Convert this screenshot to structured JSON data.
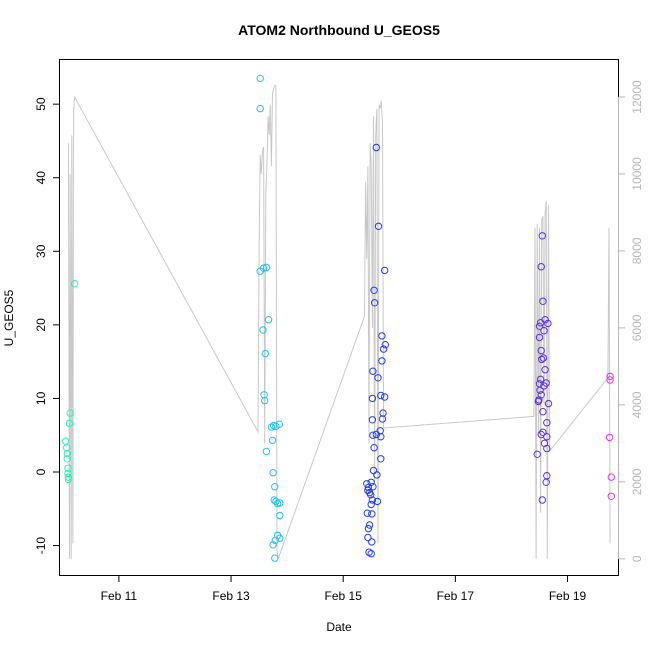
{
  "chart_data": {
    "type": "scatter",
    "title": "ATOM2 Northbound U_GEOS5",
    "xlabel": "Date",
    "ylabel": "U_GEOS5",
    "xlim": [
      9.95,
      19.9
    ],
    "ylim": [
      -14,
      56
    ],
    "y2lim": [
      -420,
      12960
    ],
    "x_ticks": [
      {
        "value": 11,
        "label": "Feb 11"
      },
      {
        "value": 13,
        "label": "Feb 13"
      },
      {
        "value": 15,
        "label": "Feb 15"
      },
      {
        "value": 17,
        "label": "Feb 17"
      },
      {
        "value": 19,
        "label": "Feb 19"
      }
    ],
    "y_ticks": [
      -10,
      0,
      10,
      20,
      30,
      40,
      50
    ],
    "y2_ticks": [
      0,
      2000,
      4000,
      6000,
      8000,
      10000,
      12000
    ],
    "altitude_color": "#c8c8c8",
    "altitude_series": [
      {
        "x": 10.1,
        "y": 10800
      },
      {
        "x": 10.12,
        "y": 0
      },
      {
        "x": 10.13,
        "y": 10000
      },
      {
        "x": 10.15,
        "y": 0
      },
      {
        "x": 10.16,
        "y": 11000
      },
      {
        "x": 10.18,
        "y": 400
      },
      {
        "x": 10.19,
        "y": 11600
      },
      {
        "x": 10.21,
        "y": 12000
      },
      {
        "x": 13.48,
        "y": 3300
      },
      {
        "x": 13.5,
        "y": 8000
      },
      {
        "x": 13.52,
        "y": 10500
      },
      {
        "x": 13.54,
        "y": 10000
      },
      {
        "x": 13.56,
        "y": 10600
      },
      {
        "x": 13.58,
        "y": 10700
      },
      {
        "x": 13.6,
        "y": 3000
      },
      {
        "x": 13.62,
        "y": 9500
      },
      {
        "x": 13.64,
        "y": 10200
      },
      {
        "x": 13.66,
        "y": 11500
      },
      {
        "x": 13.68,
        "y": 11000
      },
      {
        "x": 13.7,
        "y": 11800
      },
      {
        "x": 13.72,
        "y": 10200
      },
      {
        "x": 13.74,
        "y": 12100
      },
      {
        "x": 13.76,
        "y": 12200
      },
      {
        "x": 13.78,
        "y": 12300
      },
      {
        "x": 13.8,
        "y": 12300
      },
      {
        "x": 13.82,
        "y": 200
      },
      {
        "x": 13.84,
        "y": 0
      },
      {
        "x": 15.38,
        "y": 6300
      },
      {
        "x": 15.4,
        "y": 9800
      },
      {
        "x": 15.42,
        "y": 7800
      },
      {
        "x": 15.44,
        "y": 10200
      },
      {
        "x": 15.46,
        "y": 3000
      },
      {
        "x": 15.48,
        "y": 10800
      },
      {
        "x": 15.5,
        "y": 10300
      },
      {
        "x": 15.52,
        "y": 6000
      },
      {
        "x": 15.54,
        "y": 11500
      },
      {
        "x": 15.56,
        "y": 2000
      },
      {
        "x": 15.58,
        "y": 11000
      },
      {
        "x": 15.6,
        "y": 11700
      },
      {
        "x": 15.62,
        "y": 400
      },
      {
        "x": 15.64,
        "y": 11800
      },
      {
        "x": 15.66,
        "y": 11700
      },
      {
        "x": 15.68,
        "y": 11900
      },
      {
        "x": 15.7,
        "y": 11300
      },
      {
        "x": 15.72,
        "y": 3400
      },
      {
        "x": 18.4,
        "y": 3700
      },
      {
        "x": 18.42,
        "y": 8600
      },
      {
        "x": 18.44,
        "y": 0
      },
      {
        "x": 18.46,
        "y": 8700
      },
      {
        "x": 18.48,
        "y": 3200
      },
      {
        "x": 18.5,
        "y": 8600
      },
      {
        "x": 18.52,
        "y": 1200
      },
      {
        "x": 18.54,
        "y": 8800
      },
      {
        "x": 18.56,
        "y": 8900
      },
      {
        "x": 18.58,
        "y": 4000
      },
      {
        "x": 18.6,
        "y": 9000
      },
      {
        "x": 18.62,
        "y": 9300
      },
      {
        "x": 18.64,
        "y": 0
      },
      {
        "x": 18.66,
        "y": 9200
      },
      {
        "x": 18.68,
        "y": 2800
      },
      {
        "x": 19.72,
        "y": 4700
      },
      {
        "x": 19.74,
        "y": 8600
      },
      {
        "x": 19.76,
        "y": 400
      }
    ],
    "points": [
      {
        "x": 10.05,
        "y": 4.2,
        "color": "#2bf2b8"
      },
      {
        "x": 10.07,
        "y": 3.3,
        "color": "#2bf2b8"
      },
      {
        "x": 10.08,
        "y": 2.5,
        "color": "#2bf2b8"
      },
      {
        "x": 10.08,
        "y": 1.8,
        "color": "#2bf2b8"
      },
      {
        "x": 10.09,
        "y": 0.5,
        "color": "#2bf2b8"
      },
      {
        "x": 10.09,
        "y": -0.2,
        "color": "#2bf2b8"
      },
      {
        "x": 10.1,
        "y": -0.7,
        "color": "#2bf2b8"
      },
      {
        "x": 10.1,
        "y": -1.0,
        "color": "#2bf2b8"
      },
      {
        "x": 10.12,
        "y": 6.6,
        "color": "#2bf2b8"
      },
      {
        "x": 10.13,
        "y": 8.0,
        "color": "#2bf2b8"
      },
      {
        "x": 10.21,
        "y": 25.6,
        "color": "#2bf2b8"
      },
      {
        "x": 13.52,
        "y": 53.5,
        "color": "#21c4e8"
      },
      {
        "x": 13.52,
        "y": 49.4,
        "color": "#21c4e8"
      },
      {
        "x": 13.52,
        "y": 27.3,
        "color": "#21c4e8"
      },
      {
        "x": 13.58,
        "y": 27.7,
        "color": "#21c4e8"
      },
      {
        "x": 13.63,
        "y": 27.8,
        "color": "#21c4e8"
      },
      {
        "x": 13.67,
        "y": 20.7,
        "color": "#21c4e8"
      },
      {
        "x": 13.57,
        "y": 19.3,
        "color": "#21c4e8"
      },
      {
        "x": 13.61,
        "y": 16.1,
        "color": "#21c4e8"
      },
      {
        "x": 13.59,
        "y": 10.5,
        "color": "#21c4e8"
      },
      {
        "x": 13.6,
        "y": 9.7,
        "color": "#21c4e8"
      },
      {
        "x": 13.72,
        "y": 6.1,
        "color": "#21c4e8"
      },
      {
        "x": 13.76,
        "y": 6.3,
        "color": "#21c4e8"
      },
      {
        "x": 13.8,
        "y": 6.2,
        "color": "#21c4e8"
      },
      {
        "x": 13.86,
        "y": 6.5,
        "color": "#21c4e8"
      },
      {
        "x": 13.74,
        "y": 4.3,
        "color": "#21c4e8"
      },
      {
        "x": 13.63,
        "y": 2.8,
        "color": "#21c4e8"
      },
      {
        "x": 13.75,
        "y": -0.1,
        "color": "#21c4e8"
      },
      {
        "x": 13.78,
        "y": -2.0,
        "color": "#21c4e8"
      },
      {
        "x": 13.77,
        "y": -3.8,
        "color": "#21c4e8"
      },
      {
        "x": 13.8,
        "y": -4.0,
        "color": "#21c4e8"
      },
      {
        "x": 13.83,
        "y": -4.3,
        "color": "#21c4e8"
      },
      {
        "x": 13.87,
        "y": -4.2,
        "color": "#21c4e8"
      },
      {
        "x": 13.87,
        "y": -5.9,
        "color": "#21c4e8"
      },
      {
        "x": 13.83,
        "y": -8.6,
        "color": "#21c4e8"
      },
      {
        "x": 13.87,
        "y": -9.0,
        "color": "#21c4e8"
      },
      {
        "x": 13.79,
        "y": -9.3,
        "color": "#21c4e8"
      },
      {
        "x": 13.75,
        "y": -9.9,
        "color": "#21c4e8"
      },
      {
        "x": 13.78,
        "y": -11.7,
        "color": "#21c4e8"
      },
      {
        "x": 15.59,
        "y": 44.1,
        "color": "#1e3cf5"
      },
      {
        "x": 15.63,
        "y": 33.4,
        "color": "#1e3cf5"
      },
      {
        "x": 15.74,
        "y": 27.4,
        "color": "#1e3cf5"
      },
      {
        "x": 15.55,
        "y": 24.7,
        "color": "#1e3cf5"
      },
      {
        "x": 15.56,
        "y": 23.0,
        "color": "#1e3cf5"
      },
      {
        "x": 15.69,
        "y": 18.5,
        "color": "#1e3cf5"
      },
      {
        "x": 15.75,
        "y": 17.3,
        "color": "#1e3cf5"
      },
      {
        "x": 15.72,
        "y": 16.7,
        "color": "#1e3cf5"
      },
      {
        "x": 15.69,
        "y": 15.1,
        "color": "#1e3cf5"
      },
      {
        "x": 15.53,
        "y": 13.7,
        "color": "#1e3cf5"
      },
      {
        "x": 15.62,
        "y": 12.8,
        "color": "#1e3cf5"
      },
      {
        "x": 15.67,
        "y": 10.4,
        "color": "#1e3cf5"
      },
      {
        "x": 15.74,
        "y": 10.2,
        "color": "#1e3cf5"
      },
      {
        "x": 15.52,
        "y": 10.0,
        "color": "#1e3cf5"
      },
      {
        "x": 15.71,
        "y": 8.0,
        "color": "#1e3cf5"
      },
      {
        "x": 15.7,
        "y": 7.2,
        "color": "#1e3cf5"
      },
      {
        "x": 15.52,
        "y": 7.1,
        "color": "#1e3cf5"
      },
      {
        "x": 15.66,
        "y": 5.6,
        "color": "#1e3cf5"
      },
      {
        "x": 15.53,
        "y": 5.0,
        "color": "#1e3cf5"
      },
      {
        "x": 15.59,
        "y": 5.1,
        "color": "#1e3cf5"
      },
      {
        "x": 15.67,
        "y": 4.8,
        "color": "#1e3cf5"
      },
      {
        "x": 15.55,
        "y": 3.3,
        "color": "#1e3cf5"
      },
      {
        "x": 15.67,
        "y": 1.8,
        "color": "#1e3cf5"
      },
      {
        "x": 15.54,
        "y": 0.2,
        "color": "#1e3cf5"
      },
      {
        "x": 15.6,
        "y": -0.4,
        "color": "#1e3cf5"
      },
      {
        "x": 15.42,
        "y": -1.6,
        "color": "#1e3cf5"
      },
      {
        "x": 15.5,
        "y": -1.4,
        "color": "#1e3cf5"
      },
      {
        "x": 15.45,
        "y": -2.1,
        "color": "#1e3cf5"
      },
      {
        "x": 15.53,
        "y": -2.0,
        "color": "#1e3cf5"
      },
      {
        "x": 15.44,
        "y": -2.5,
        "color": "#1e3cf5"
      },
      {
        "x": 15.47,
        "y": -2.8,
        "color": "#1e3cf5"
      },
      {
        "x": 15.49,
        "y": -3.1,
        "color": "#1e3cf5"
      },
      {
        "x": 15.52,
        "y": -3.8,
        "color": "#1e3cf5"
      },
      {
        "x": 15.61,
        "y": -4.0,
        "color": "#1e3cf5"
      },
      {
        "x": 15.5,
        "y": -4.4,
        "color": "#1e3cf5"
      },
      {
        "x": 15.43,
        "y": -5.6,
        "color": "#1e3cf5"
      },
      {
        "x": 15.51,
        "y": -5.7,
        "color": "#1e3cf5"
      },
      {
        "x": 15.47,
        "y": -7.2,
        "color": "#1e3cf5"
      },
      {
        "x": 15.45,
        "y": -7.7,
        "color": "#1e3cf5"
      },
      {
        "x": 15.44,
        "y": -8.9,
        "color": "#1e3cf5"
      },
      {
        "x": 15.51,
        "y": -9.5,
        "color": "#1e3cf5"
      },
      {
        "x": 15.46,
        "y": -10.9,
        "color": "#1e3cf5"
      },
      {
        "x": 15.5,
        "y": -11.1,
        "color": "#1e3cf5"
      },
      {
        "x": 18.55,
        "y": 32.1,
        "color": "#5d2fe8"
      },
      {
        "x": 18.53,
        "y": 27.9,
        "color": "#5d2fe8"
      },
      {
        "x": 18.56,
        "y": 23.2,
        "color": "#5d2fe8"
      },
      {
        "x": 18.6,
        "y": 20.7,
        "color": "#5d2fe8"
      },
      {
        "x": 18.52,
        "y": 20.3,
        "color": "#5d2fe8"
      },
      {
        "x": 18.5,
        "y": 19.8,
        "color": "#5d2fe8"
      },
      {
        "x": 18.65,
        "y": 20.2,
        "color": "#5d2fe8"
      },
      {
        "x": 18.58,
        "y": 19.2,
        "color": "#5d2fe8"
      },
      {
        "x": 18.5,
        "y": 18.3,
        "color": "#5d2fe8"
      },
      {
        "x": 18.53,
        "y": 16.5,
        "color": "#5d2fe8"
      },
      {
        "x": 18.57,
        "y": 15.5,
        "color": "#5d2fe8"
      },
      {
        "x": 18.54,
        "y": 15.3,
        "color": "#5d2fe8"
      },
      {
        "x": 18.6,
        "y": 13.9,
        "color": "#5d2fe8"
      },
      {
        "x": 18.52,
        "y": 12.6,
        "color": "#5d2fe8"
      },
      {
        "x": 18.5,
        "y": 12.0,
        "color": "#5d2fe8"
      },
      {
        "x": 18.62,
        "y": 12.1,
        "color": "#5d2fe8"
      },
      {
        "x": 18.58,
        "y": 11.7,
        "color": "#5d2fe8"
      },
      {
        "x": 18.51,
        "y": 11.1,
        "color": "#5d2fe8"
      },
      {
        "x": 18.53,
        "y": 10.5,
        "color": "#5d2fe8"
      },
      {
        "x": 18.48,
        "y": 9.6,
        "color": "#5d2fe8"
      },
      {
        "x": 18.49,
        "y": 9.8,
        "color": "#5d2fe8"
      },
      {
        "x": 18.66,
        "y": 9.3,
        "color": "#5d2fe8"
      },
      {
        "x": 18.56,
        "y": 8.2,
        "color": "#5d2fe8"
      },
      {
        "x": 18.63,
        "y": 6.7,
        "color": "#5d2fe8"
      },
      {
        "x": 18.56,
        "y": 5.4,
        "color": "#5d2fe8"
      },
      {
        "x": 18.53,
        "y": 5.1,
        "color": "#5d2fe8"
      },
      {
        "x": 18.63,
        "y": 4.8,
        "color": "#5d2fe8"
      },
      {
        "x": 18.59,
        "y": 3.9,
        "color": "#5d2fe8"
      },
      {
        "x": 18.63,
        "y": 3.2,
        "color": "#5d2fe8"
      },
      {
        "x": 18.46,
        "y": 2.4,
        "color": "#5d2fe8"
      },
      {
        "x": 18.63,
        "y": -0.5,
        "color": "#5d2fe8"
      },
      {
        "x": 18.62,
        "y": -1.4,
        "color": "#5d2fe8"
      },
      {
        "x": 18.55,
        "y": -3.8,
        "color": "#5d2fe8"
      },
      {
        "x": 19.76,
        "y": 13.0,
        "color": "#e234e8"
      },
      {
        "x": 19.76,
        "y": 12.5,
        "color": "#e234e8"
      },
      {
        "x": 19.75,
        "y": 4.7,
        "color": "#e234e8"
      },
      {
        "x": 19.78,
        "y": -0.7,
        "color": "#e234e8"
      },
      {
        "x": 19.78,
        "y": -3.3,
        "color": "#e234e8"
      }
    ]
  }
}
